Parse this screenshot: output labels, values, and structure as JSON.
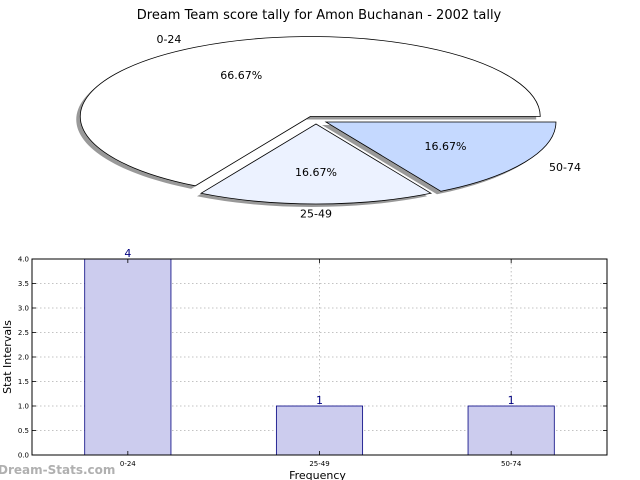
{
  "title": "Dream Team score tally for Amon Buchanan - 2002 tally",
  "watermark": "Dream-Stats.com",
  "colors": {
    "slice_0": "#ffffff",
    "slice_1": "#ecf2ff",
    "slice_2": "#c5d9ff",
    "bar_fill": "#ccccee",
    "bar_edge": "#00007f",
    "bar_label": "#00007f",
    "shadow": "#999999",
    "grid": "#b0b0b0"
  },
  "chart_data": [
    {
      "type": "pie",
      "categories": [
        "0-24",
        "25-49",
        "50-74"
      ],
      "values": [
        4,
        1,
        1
      ],
      "percent_labels": [
        "66.67%",
        "16.67%",
        "16.67%"
      ],
      "exploded": true,
      "shadow": true
    },
    {
      "type": "bar",
      "categories": [
        "0-24",
        "25-49",
        "50-74"
      ],
      "values": [
        4,
        1,
        1
      ],
      "value_labels": [
        "4",
        "1",
        "1"
      ],
      "xlabel": "Frequency",
      "ylabel": "Stat Intervals",
      "ylim": [
        0,
        4
      ],
      "yticks": [
        0.0,
        0.5,
        1.0,
        1.5,
        2.0,
        2.5,
        3.0,
        3.5,
        4.0
      ],
      "ytick_labels": [
        "0.0",
        "0.5",
        "1.0",
        "1.5",
        "2.0",
        "2.5",
        "3.0",
        "3.5",
        "4.0"
      ],
      "grid": true
    }
  ]
}
